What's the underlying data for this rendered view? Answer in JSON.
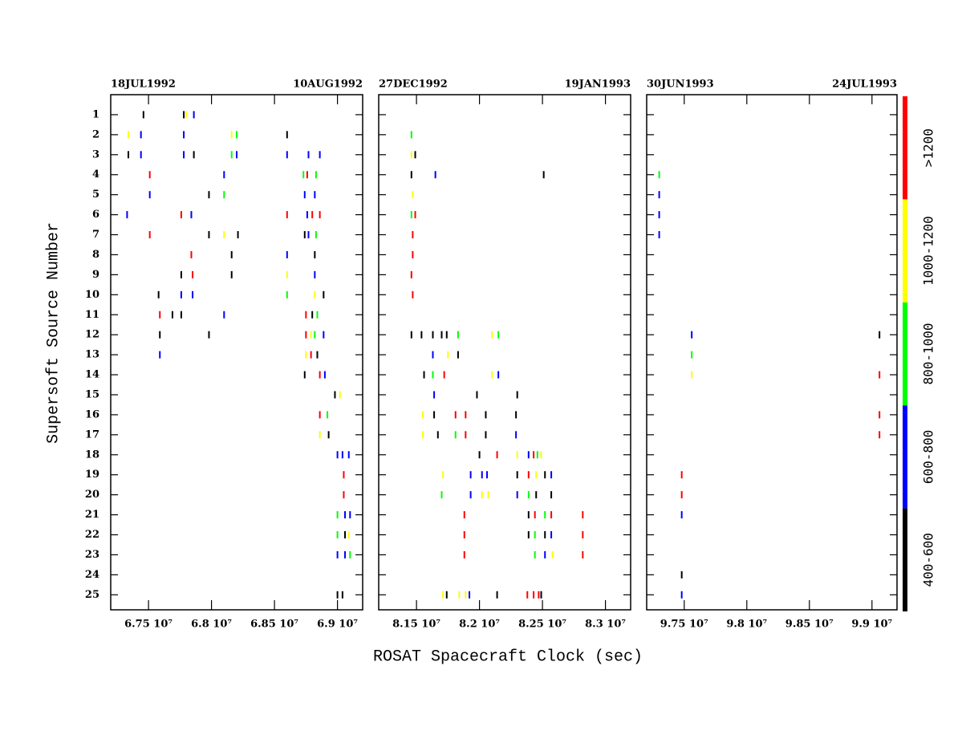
{
  "chart_data": {
    "type": "scatter",
    "xlabel": "ROSAT Spacecraft Clock (sec)",
    "ylabel": "Supersoft Source Number",
    "ylim": [
      0,
      25.75
    ],
    "y_inverted": true,
    "yticks": [
      1,
      2,
      3,
      4,
      5,
      6,
      7,
      8,
      9,
      10,
      11,
      12,
      13,
      14,
      15,
      16,
      17,
      18,
      19,
      20,
      21,
      22,
      23,
      24,
      25
    ],
    "panels": [
      {
        "start_label": "18JUL1992",
        "end_label": "10AUG1992",
        "xlim": [
          67200000,
          69200000
        ],
        "xticks": [
          {
            "value": 67500000,
            "label": "6.75 10⁷"
          },
          {
            "value": 68000000,
            "label": "6.8 10⁷"
          },
          {
            "value": 68500000,
            "label": "6.85 10⁷"
          },
          {
            "value": 69000000,
            "label": "6.9 10⁷"
          }
        ]
      },
      {
        "start_label": "27DEC1992",
        "end_label": "19JAN1993",
        "xlim": [
          81200000,
          83200000
        ],
        "xticks": [
          {
            "value": 81500000,
            "label": "8.15 10⁷"
          },
          {
            "value": 82000000,
            "label": "8.2 10⁷"
          },
          {
            "value": 82500000,
            "label": "8.25 10⁷"
          },
          {
            "value": 83000000,
            "label": "8.3 10⁷"
          }
        ]
      },
      {
        "start_label": "30JUN1993",
        "end_label": "24JUL1993",
        "xlim": [
          97200000,
          99200000
        ],
        "xticks": [
          {
            "value": 97500000,
            "label": "9.75 10⁷"
          },
          {
            "value": 98000000,
            "label": "9.8 10⁷"
          },
          {
            "value": 98500000,
            "label": "9.85 10⁷"
          },
          {
            "value": 99000000,
            "label": "9.9 10⁷"
          }
        ]
      }
    ],
    "series": [
      {
        "name": "400-600",
        "color": "#000000",
        "x": [
          67460000,
          67780000,
          68600000,
          67340000,
          67860000,
          67980000,
          67980000,
          68210000,
          68740000,
          68160000,
          68820000,
          67760000,
          68160000,
          67580000,
          68890000,
          67690000,
          67760000,
          68800000,
          67590000,
          67980000,
          68840000,
          68740000,
          68980000,
          68930000,
          69060000,
          69000000,
          69040000,
          81490000,
          81460000,
          82510000,
          81460000,
          81540000,
          81630000,
          81700000,
          81740000,
          81830000,
          81560000,
          81980000,
          82300000,
          81640000,
          82050000,
          82290000,
          81670000,
          82050000,
          82000000,
          82300000,
          82520000,
          82450000,
          82570000,
          82390000,
          82390000,
          82520000,
          81740000,
          82140000,
          82490000,
          99060000,
          97480000
        ],
        "y": [
          1,
          1,
          2,
          3,
          3,
          5,
          7,
          7,
          7,
          8,
          8,
          9,
          9,
          10,
          10,
          11,
          11,
          11,
          12,
          12,
          13,
          14,
          15,
          17,
          22,
          25,
          25,
          3,
          4,
          4,
          12,
          12,
          12,
          12,
          12,
          13,
          14,
          15,
          15,
          16,
          16,
          16,
          17,
          17,
          18,
          19,
          19,
          20,
          20,
          21,
          22,
          22,
          25,
          25,
          25,
          12,
          24
        ]
      },
      {
        "name": "600-800",
        "color": "#0000ff",
        "x": [
          67860000,
          67440000,
          67780000,
          67440000,
          67780000,
          68200000,
          68600000,
          68770000,
          68860000,
          68100000,
          67510000,
          68740000,
          68820000,
          67330000,
          67840000,
          68760000,
          68770000,
          68600000,
          68820000,
          67760000,
          67850000,
          68100000,
          68890000,
          67590000,
          68900000,
          69000000,
          69040000,
          69090000,
          69060000,
          69100000,
          69000000,
          69060000,
          81650000,
          81630000,
          82150000,
          81640000,
          82290000,
          82390000,
          81930000,
          82020000,
          82060000,
          82570000,
          81930000,
          82300000,
          82570000,
          82520000,
          81920000,
          97300000,
          97300000,
          97300000,
          97560000,
          97480000,
          97480000
        ],
        "y": [
          1,
          2,
          2,
          3,
          3,
          3,
          3,
          3,
          3,
          4,
          5,
          5,
          5,
          6,
          6,
          6,
          7,
          8,
          9,
          10,
          10,
          11,
          12,
          13,
          14,
          18,
          18,
          18,
          21,
          21,
          23,
          23,
          4,
          13,
          14,
          15,
          17,
          18,
          19,
          19,
          19,
          19,
          20,
          20,
          22,
          23,
          25,
          5,
          6,
          7,
          12,
          21,
          25
        ]
      },
      {
        "name": "800-1000",
        "color": "#00ff00",
        "x": [
          68200000,
          68160000,
          68730000,
          68830000,
          68100000,
          68830000,
          68600000,
          68840000,
          68820000,
          68920000,
          69000000,
          69000000,
          69100000,
          81460000,
          81460000,
          81830000,
          82150000,
          81630000,
          81810000,
          82460000,
          81700000,
          82390000,
          82520000,
          82440000,
          82440000,
          97300000,
          97560000
        ],
        "y": [
          2,
          3,
          4,
          4,
          5,
          7,
          10,
          11,
          12,
          16,
          21,
          22,
          23,
          2,
          6,
          12,
          12,
          14,
          17,
          18,
          20,
          20,
          21,
          22,
          23,
          4,
          13
        ]
      },
      {
        "name": "1000-1200",
        "color": "#ffff00",
        "x": [
          67800000,
          67340000,
          68160000,
          68100000,
          68600000,
          68820000,
          68790000,
          68750000,
          69020000,
          68860000,
          69090000,
          81460000,
          81470000,
          82100000,
          81750000,
          82100000,
          81550000,
          81550000,
          82300000,
          82490000,
          81710000,
          82450000,
          82020000,
          82070000,
          82580000,
          81710000,
          81840000,
          81890000,
          97560000
        ],
        "y": [
          1,
          2,
          2,
          7,
          9,
          10,
          12,
          13,
          15,
          17,
          22,
          3,
          5,
          12,
          13,
          14,
          16,
          17,
          18,
          18,
          19,
          19,
          20,
          20,
          23,
          25,
          25,
          25,
          14
        ]
      },
      {
        "name": ">1200",
        "color": "#ff0000",
        "x": [
          67510000,
          68760000,
          67760000,
          68600000,
          68800000,
          68860000,
          67510000,
          67840000,
          67850000,
          67590000,
          68750000,
          68750000,
          68790000,
          68860000,
          68860000,
          69050000,
          69050000,
          81490000,
          81470000,
          81470000,
          81460000,
          81470000,
          81720000,
          81810000,
          81890000,
          81890000,
          82140000,
          82430000,
          82390000,
          81880000,
          82440000,
          82570000,
          82820000,
          81880000,
          82820000,
          81880000,
          82820000,
          82380000,
          82430000,
          82470000,
          99060000,
          99060000,
          99060000,
          97480000,
          97480000
        ],
        "y": [
          4,
          4,
          6,
          6,
          6,
          6,
          7,
          8,
          9,
          11,
          11,
          12,
          13,
          14,
          16,
          19,
          20,
          6,
          7,
          8,
          9,
          10,
          14,
          16,
          16,
          17,
          18,
          18,
          19,
          21,
          21,
          21,
          21,
          22,
          22,
          23,
          23,
          25,
          25,
          25,
          14,
          16,
          17,
          19,
          20
        ]
      }
    ]
  }
}
